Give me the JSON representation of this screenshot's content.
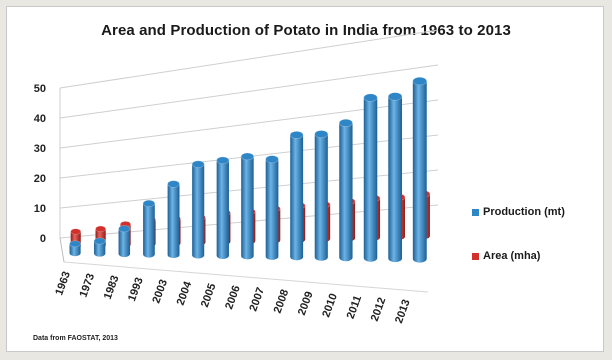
{
  "title": "Area and Production of Potato in India from 1963 to 2013",
  "source_note": "Data from FAOSTAT, 2013",
  "colors": {
    "production": "#2f86c6",
    "area": "#d2302c"
  },
  "chart_data": {
    "type": "bar",
    "title": "Area and Production of Potato in India from 1963 to 2013",
    "categories": [
      "1963",
      "1973",
      "1983",
      "1993",
      "2003",
      "2004",
      "2005",
      "2006",
      "2007",
      "2008",
      "2009",
      "2010",
      "2011",
      "2012",
      "2013"
    ],
    "series": [
      {
        "name": "Production (mt)",
        "values": [
          3,
          4,
          8,
          16,
          22,
          28,
          29,
          30,
          29,
          36,
          36,
          39,
          46,
          46,
          50
        ]
      },
      {
        "name": "Area (mha)",
        "values": [
          0.8,
          0.9,
          1.1,
          1.3,
          1.3,
          1.3,
          1.5,
          1.5,
          1.6,
          1.7,
          1.7,
          1.8,
          1.9,
          1.9,
          2.0
        ]
      }
    ],
    "y_ticks": [
      "50",
      "40",
      "30",
      "20",
      "10",
      "0"
    ],
    "ylim": [
      0,
      50
    ],
    "grid": true,
    "legend_position": "right"
  }
}
